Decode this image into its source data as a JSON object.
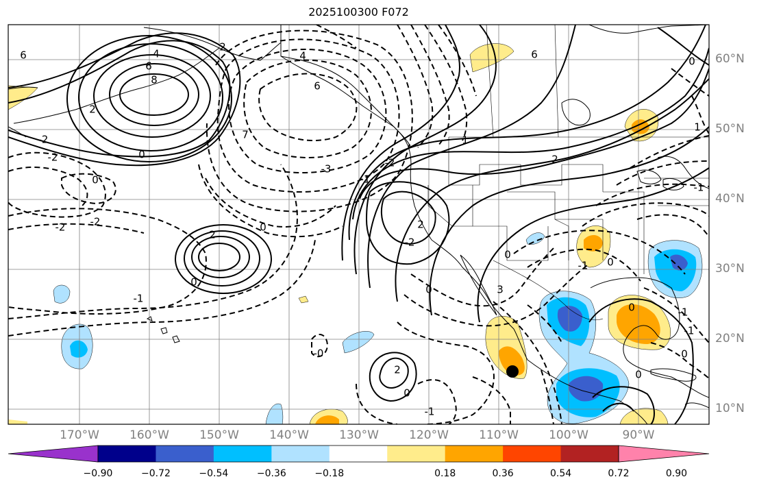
{
  "title": "2025100300 F072",
  "lat_labels": [
    "60°N",
    "50°N",
    "40°N",
    "30°N",
    "20°N",
    "10°N"
  ],
  "lon_labels": [
    "170°W",
    "160°W",
    "150°W",
    "140°W",
    "130°W",
    "120°W",
    "110°W",
    "100°W",
    "90°W"
  ],
  "colorbar": {
    "tick_labels": [
      "−0.90",
      "−0.72",
      "−0.54",
      "−0.36",
      "−0.18",
      "0.18",
      "0.36",
      "0.54",
      "0.72",
      "0.90"
    ],
    "colors": [
      "#9932cc",
      "#00008b",
      "#3a5fcd",
      "#00bfff",
      "#b0e2ff",
      "#ffffff",
      "#ffec8b",
      "#ffa500",
      "#ff4500",
      "#b22222",
      "#ff82ab"
    ]
  },
  "contour_labels": [
    "6",
    "4",
    "6",
    "8",
    "2",
    "2",
    "0",
    "-2",
    "-2",
    "0",
    "-2",
    "-2",
    "4",
    "6",
    "7",
    "-3",
    "-2",
    "-1",
    "2",
    "0",
    "2",
    "-2",
    "0",
    "-1",
    "0",
    "1",
    "0",
    "0",
    "-1",
    "2",
    "6",
    "2",
    "0",
    "-1",
    "3",
    "-1",
    "-1",
    "0",
    "0",
    "0",
    "-0",
    "-1",
    "1",
    "0"
  ],
  "contour_line_color": "#000000",
  "coastline_color": "#000000",
  "grid_color": "#808080",
  "marker": "storm-position-marker"
}
